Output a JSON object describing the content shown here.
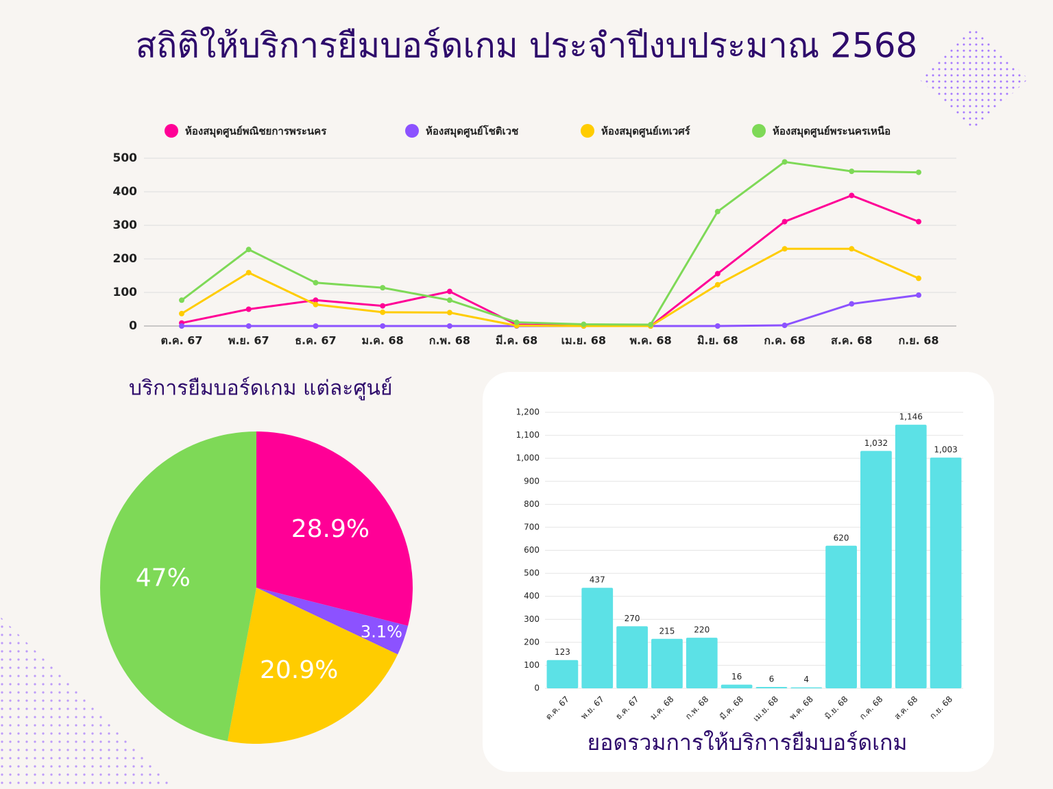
{
  "title": "สถิติให้บริการยืมบอร์ดเกม ประจำปีงบประมาณ 2568",
  "chart_data": [
    {
      "type": "line",
      "categories": [
        "ต.ค. 67",
        "พ.ย. 67",
        "ธ.ค. 67",
        "ม.ค. 68",
        "ก.พ. 68",
        "มี.ค. 68",
        "เม.ย. 68",
        "พ.ค. 68",
        "มิ.ย. 68",
        "ก.ค. 68",
        "ส.ค. 68",
        "ก.ย. 68"
      ],
      "series": [
        {
          "name": "ห้องสมุดศูนย์พณิชยการพระนคร",
          "color": "#ff0096",
          "values": [
            9,
            50,
            77,
            60,
            103,
            4,
            1,
            0,
            156,
            311,
            389,
            311
          ]
        },
        {
          "name": "ห้องสมุดศูนย์โชติเวช",
          "color": "#8c52ff",
          "values": [
            0,
            0,
            0,
            0,
            0,
            0,
            0,
            0,
            0,
            2,
            66,
            92
          ]
        },
        {
          "name": "ห้องสมุดศูนย์เทเวศร์",
          "color": "#ffcc00",
          "values": [
            37,
            159,
            64,
            41,
            40,
            1,
            0,
            0,
            123,
            230,
            230,
            142
          ]
        },
        {
          "name": "ห้องสมุดศูนย์พระนครเหนือ",
          "color": "#7ed957",
          "values": [
            77,
            228,
            129,
            114,
            77,
            11,
            5,
            4,
            341,
            489,
            461,
            458
          ]
        }
      ],
      "ylim": [
        0,
        500
      ],
      "yticks": [
        0,
        100,
        200,
        300,
        400,
        500
      ],
      "grid": true,
      "legend": "top"
    },
    {
      "type": "pie",
      "title": "บริการยืมบอร์ดเกม แต่ละศูนย์",
      "values": [
        28.9,
        3.1,
        20.9,
        47
      ],
      "value_labels": [
        "28.9%",
        "3.1%",
        "20.9%",
        "47%"
      ],
      "colors": [
        "#ff0096",
        "#8c52ff",
        "#ffcc00",
        "#7ed957"
      ]
    },
    {
      "type": "bar",
      "title": "ยอดรวมการให้บริการยืมบอร์ดเกม",
      "categories": [
        "ต.ค. 67",
        "พ.ย. 67",
        "ธ.ค. 67",
        "ม.ค. 68",
        "ก.พ. 68",
        "มี.ค. 68",
        "เม.ย. 68",
        "พ.ค. 68",
        "มิ.ย. 68",
        "ก.ค. 68",
        "ส.ค. 68",
        "ก.ย. 68"
      ],
      "values": [
        123,
        437,
        270,
        215,
        220,
        16,
        6,
        4,
        620,
        1032,
        1146,
        1003
      ],
      "value_labels": [
        "123",
        "437",
        "270",
        "215",
        "220",
        "16",
        "6",
        "4",
        "620",
        "1,032",
        "1,146",
        "1,003"
      ],
      "color": "#5ce1e6",
      "ylim": [
        0,
        1200
      ],
      "yticks": [
        0,
        100,
        200,
        300,
        400,
        500,
        600,
        700,
        800,
        900,
        {
          "value": 1000,
          "label": "1,000"
        },
        {
          "value": 1100,
          "label": "1,100"
        },
        {
          "value": 1200,
          "label": "1,200"
        }
      ],
      "grid": true
    }
  ]
}
